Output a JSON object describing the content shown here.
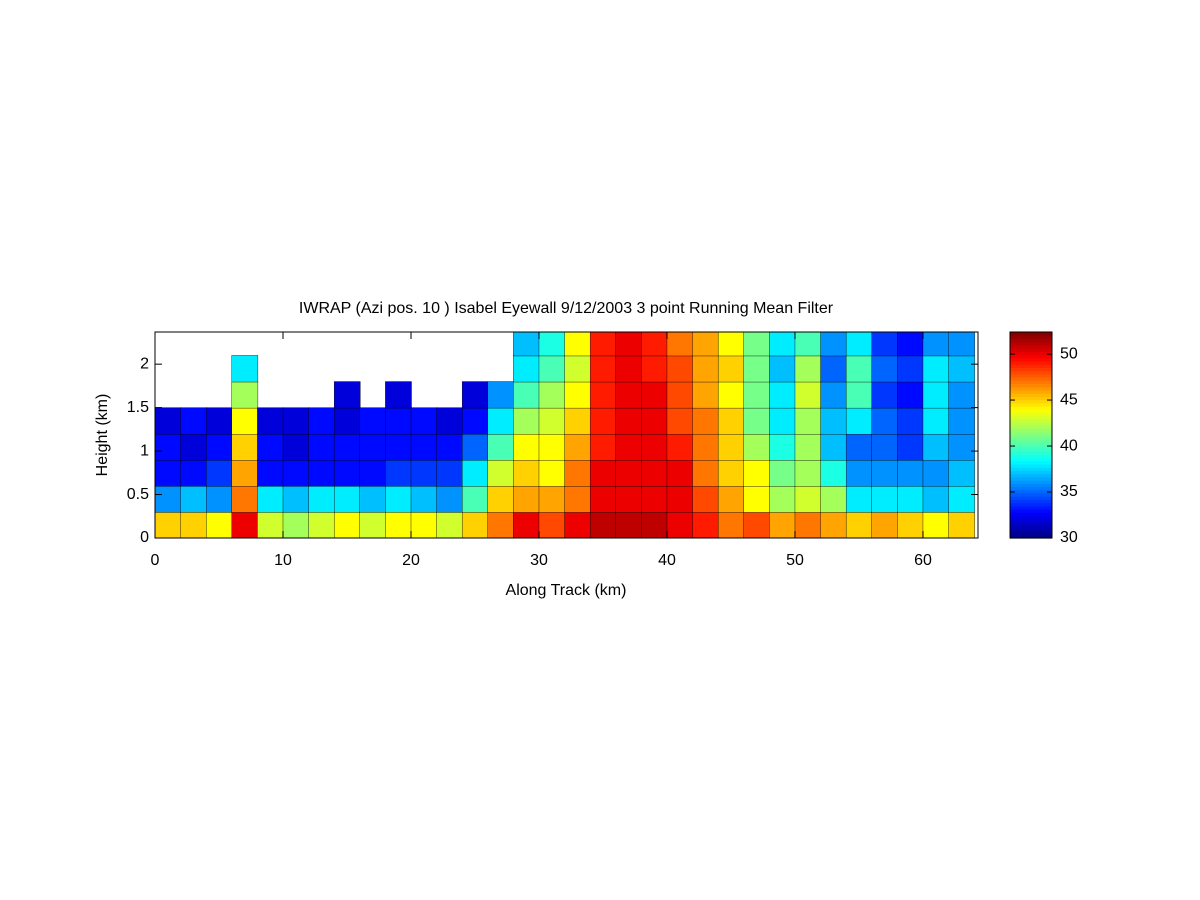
{
  "chart_data": {
    "type": "heatmap",
    "title": "IWRAP (Azi pos. 10 ) Isabel Eyewall 9/12/2003 3 point Running Mean Filter",
    "xlabel": "Along Track (km)",
    "ylabel": "Height (km)",
    "colormap": "jet",
    "x": [
      1,
      3,
      5,
      7,
      9,
      11,
      13,
      15,
      17,
      19,
      21,
      23,
      25,
      27,
      29,
      31,
      33,
      35,
      37,
      39,
      41,
      43,
      45,
      47,
      49,
      51,
      53,
      55,
      57,
      59,
      61,
      63
    ],
    "y": [
      0.15,
      0.45,
      0.75,
      1.05,
      1.35,
      1.65,
      1.95,
      2.25
    ],
    "z": [
      [
        45,
        36,
        33,
        33,
        32,
        null,
        null,
        null
      ],
      [
        45,
        37,
        33,
        32,
        33,
        null,
        null,
        null
      ],
      [
        44,
        36,
        34,
        33,
        32,
        null,
        null,
        null
      ],
      [
        50,
        47,
        46,
        45,
        44,
        42,
        38,
        null
      ],
      [
        43,
        38,
        33,
        33,
        32,
        null,
        null,
        null
      ],
      [
        42,
        37,
        33,
        32,
        32,
        null,
        null,
        null
      ],
      [
        43,
        38,
        33,
        33,
        33,
        null,
        null,
        null
      ],
      [
        44,
        38,
        33,
        33,
        32,
        32,
        null,
        null
      ],
      [
        43,
        37,
        33,
        33,
        33,
        null,
        null,
        null
      ],
      [
        44,
        38,
        34,
        33,
        33,
        32,
        null,
        null
      ],
      [
        44,
        37,
        34,
        33,
        33,
        null,
        null,
        null
      ],
      [
        43,
        36,
        34,
        33,
        32,
        null,
        null,
        null
      ],
      [
        45,
        40,
        38,
        35,
        33,
        32,
        null,
        null
      ],
      [
        47,
        45,
        43,
        40,
        38,
        36,
        null,
        null
      ],
      [
        50,
        46,
        45,
        44,
        42,
        40,
        38,
        37
      ],
      [
        48,
        46,
        44,
        44,
        43,
        42,
        40,
        39
      ],
      [
        50,
        47,
        47,
        46,
        45,
        44,
        43,
        44
      ],
      [
        51,
        50,
        50,
        49,
        49,
        49,
        49,
        49
      ],
      [
        51,
        50,
        50,
        50,
        50,
        50,
        50,
        50
      ],
      [
        51,
        50,
        50,
        50,
        50,
        50,
        49,
        49
      ],
      [
        50,
        50,
        50,
        49,
        48,
        48,
        48,
        47
      ],
      [
        49,
        48,
        47,
        47,
        47,
        46,
        46,
        46
      ],
      [
        47,
        46,
        45,
        45,
        45,
        44,
        45,
        44
      ],
      [
        48,
        44,
        44,
        42,
        41,
        41,
        41,
        41
      ],
      [
        46,
        42,
        41,
        39,
        38,
        38,
        37,
        38
      ],
      [
        47,
        43,
        42,
        42,
        42,
        43,
        42,
        40
      ],
      [
        46,
        42,
        39,
        37,
        37,
        36,
        35,
        36
      ],
      [
        45,
        38,
        36,
        35,
        38,
        40,
        40,
        38
      ],
      [
        46,
        38,
        36,
        35,
        35,
        34,
        35,
        34
      ],
      [
        45,
        38,
        36,
        34,
        34,
        33,
        34,
        33
      ],
      [
        44,
        37,
        36,
        37,
        38,
        38,
        38,
        36
      ],
      [
        45,
        38,
        37,
        36,
        36,
        36,
        37,
        36
      ]
    ],
    "xlim": [
      0,
      64.3
    ],
    "ylim": [
      0,
      2.37
    ],
    "xticks": [
      0,
      10,
      20,
      30,
      40,
      50,
      60
    ],
    "yticks": [
      0,
      0.5,
      1,
      1.5,
      2
    ],
    "clim": [
      30,
      52.4
    ],
    "cticks": [
      30,
      35,
      40,
      45,
      50
    ]
  }
}
